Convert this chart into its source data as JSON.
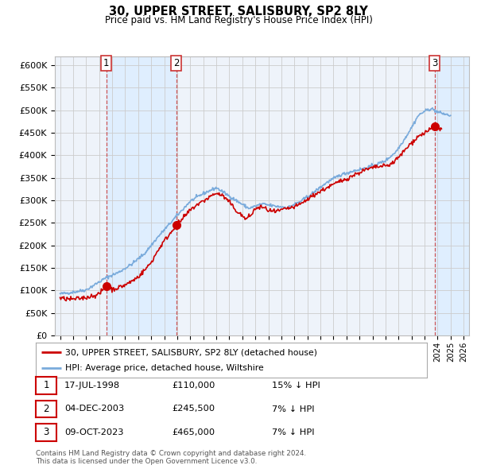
{
  "title": "30, UPPER STREET, SALISBURY, SP2 8LY",
  "subtitle": "Price paid vs. HM Land Registry's House Price Index (HPI)",
  "ylim": [
    0,
    620000
  ],
  "yticks": [
    0,
    50000,
    100000,
    150000,
    200000,
    250000,
    300000,
    350000,
    400000,
    450000,
    500000,
    550000,
    600000
  ],
  "xlim_start": 1994.6,
  "xlim_end": 2026.4,
  "hpi_color": "#7aabdc",
  "price_color": "#cc0000",
  "sale_marker_color": "#cc0000",
  "vline_color": "#cc4444",
  "shade_color": "#ddeeff",
  "grid_color": "#cccccc",
  "bg_color": "#ffffff",
  "plot_bg_color": "#eef3fa",
  "sales": [
    {
      "date_year": 1998.54,
      "price": 110000,
      "label": "1"
    },
    {
      "date_year": 2003.92,
      "price": 245500,
      "label": "2"
    },
    {
      "date_year": 2023.77,
      "price": 465000,
      "label": "3"
    }
  ],
  "legend_entries": [
    {
      "label": "30, UPPER STREET, SALISBURY, SP2 8LY (detached house)",
      "color": "#cc0000",
      "lw": 2
    },
    {
      "label": "HPI: Average price, detached house, Wiltshire",
      "color": "#7aabdc",
      "lw": 2
    }
  ],
  "table_rows": [
    {
      "num": "1",
      "date": "17-JUL-1998",
      "price": "£110,000",
      "change": "15% ↓ HPI"
    },
    {
      "num": "2",
      "date": "04-DEC-2003",
      "price": "£245,500",
      "change": "7% ↓ HPI"
    },
    {
      "num": "3",
      "date": "09-OCT-2023",
      "price": "£465,000",
      "change": "7% ↓ HPI"
    }
  ],
  "footnote": "Contains HM Land Registry data © Crown copyright and database right 2024.\nThis data is licensed under the Open Government Licence v3.0."
}
